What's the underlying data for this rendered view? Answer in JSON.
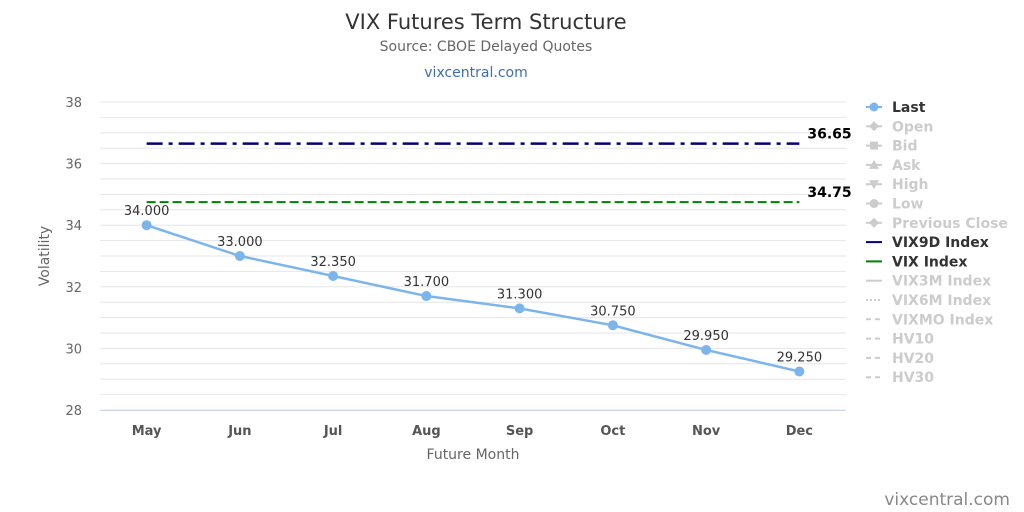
{
  "header": {
    "title": "VIX Futures Term Structure",
    "subtitle": "Source: CBOE Delayed Quotes",
    "link": "vixcentral.com"
  },
  "credit": "vixcentral.com",
  "colors": {
    "last": "#7cb5ec",
    "vix9d": "#000080",
    "vix": "#008000",
    "inactive": "#cccccc",
    "grid": "#e6e6e6"
  },
  "chart_data": {
    "type": "line",
    "title": "VIX Futures Term Structure",
    "subtitle": "Source: CBOE Delayed Quotes",
    "xlabel": "Future Month",
    "ylabel": "Volatility",
    "ylim": [
      28,
      38
    ],
    "yticks": [
      28,
      30,
      32,
      34,
      36,
      38
    ],
    "grid": true,
    "legend_position": "right",
    "categories": [
      "May",
      "Jun",
      "Jul",
      "Aug",
      "Sep",
      "Oct",
      "Nov",
      "Dec"
    ],
    "series": [
      {
        "name": "Last",
        "values": [
          34.0,
          33.0,
          32.35,
          31.7,
          31.3,
          30.75,
          29.95,
          29.25
        ],
        "labels": [
          "34.000",
          "33.000",
          "32.350",
          "31.700",
          "31.300",
          "30.750",
          "29.950",
          "29.250"
        ]
      },
      {
        "name": "VIX9D Index",
        "value": 36.65,
        "label": "36.65"
      },
      {
        "name": "VIX Index",
        "value": 34.75,
        "label": "34.75"
      }
    ],
    "legend": [
      {
        "name": "Last",
        "active": true,
        "symbol": "circle-line"
      },
      {
        "name": "Open",
        "active": false,
        "symbol": "diamond-line"
      },
      {
        "name": "Bid",
        "active": false,
        "symbol": "square-line"
      },
      {
        "name": "Ask",
        "active": false,
        "symbol": "triangle-line"
      },
      {
        "name": "High",
        "active": false,
        "symbol": "triangle-down-line"
      },
      {
        "name": "Low",
        "active": false,
        "symbol": "circle-line"
      },
      {
        "name": "Previous Close",
        "active": false,
        "symbol": "diamond-line"
      },
      {
        "name": "VIX9D Index",
        "active": true,
        "symbol": "line",
        "color": "#000080"
      },
      {
        "name": "VIX Index",
        "active": true,
        "symbol": "line",
        "color": "#008000"
      },
      {
        "name": "VIX3M Index",
        "active": false,
        "symbol": "line"
      },
      {
        "name": "VIX6M Index",
        "active": false,
        "symbol": "dotted"
      },
      {
        "name": "VIXMO Index",
        "active": false,
        "symbol": "dashed"
      },
      {
        "name": "HV10",
        "active": false,
        "symbol": "dashed"
      },
      {
        "name": "HV20",
        "active": false,
        "symbol": "dashed"
      },
      {
        "name": "HV30",
        "active": false,
        "symbol": "dashed"
      }
    ]
  }
}
